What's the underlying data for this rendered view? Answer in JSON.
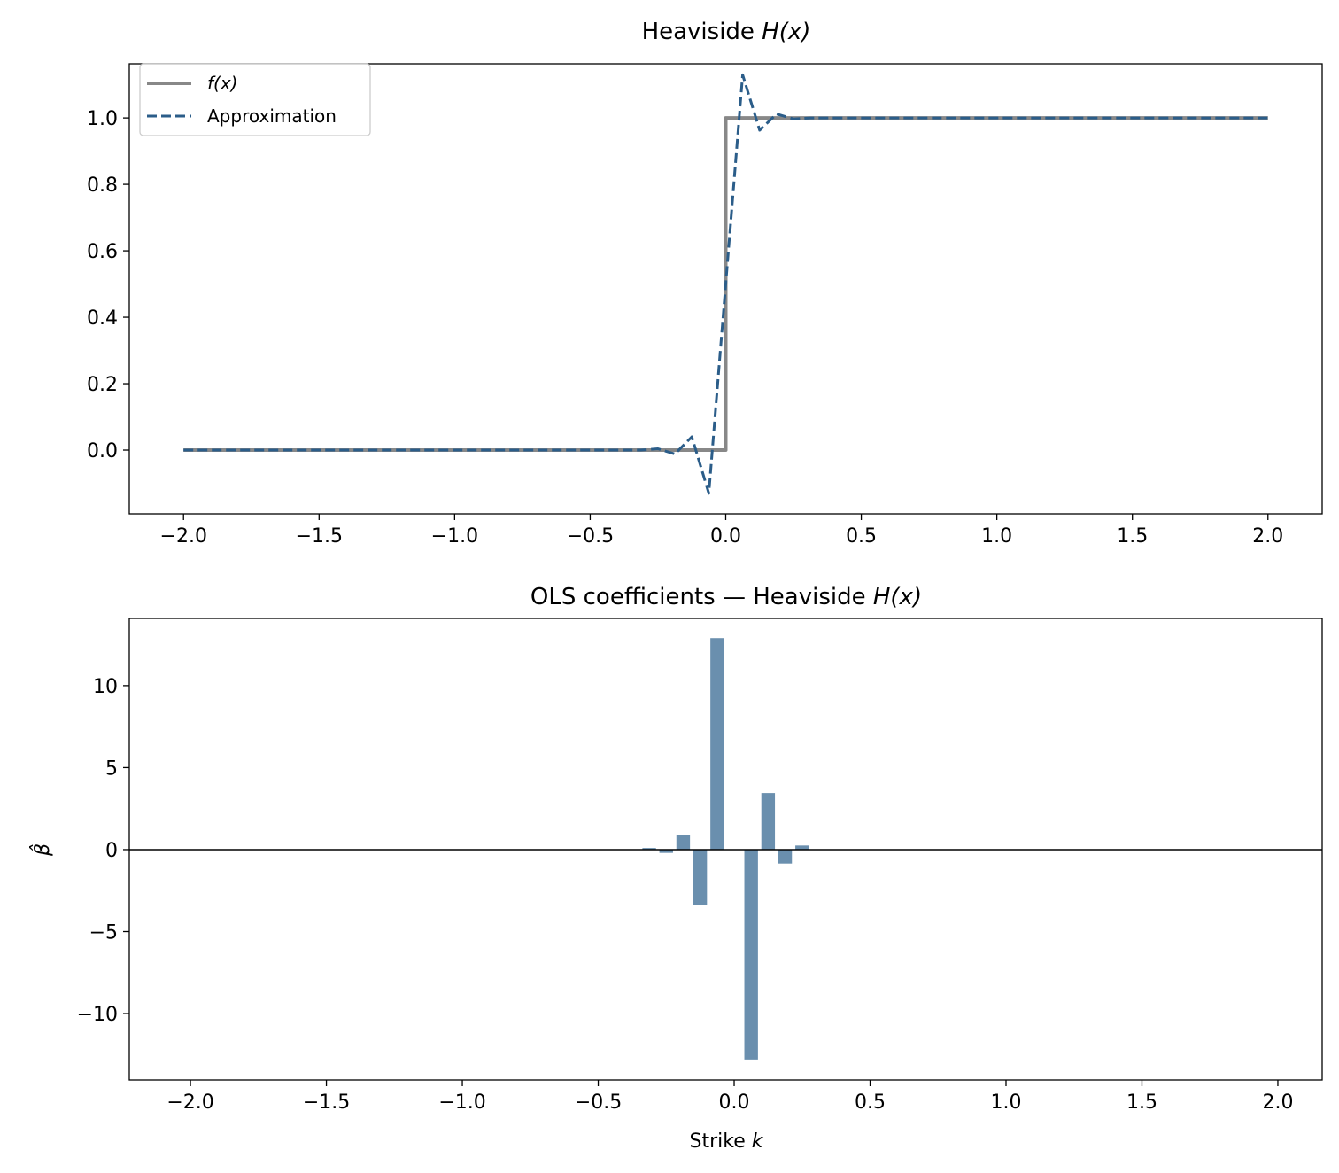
{
  "chart_data": [
    {
      "type": "line",
      "title": "Heaviside",
      "title_math": "H(x)",
      "xlabel": "",
      "ylabel": "",
      "xlim": [
        -2.2,
        2.2
      ],
      "ylim": [
        -0.192,
        1.163
      ],
      "xticks": [
        -2.0,
        -1.5,
        -1.0,
        -0.5,
        0.0,
        0.5,
        1.0,
        1.5,
        2.0
      ],
      "xtick_labels": [
        "−2.0",
        "−1.5",
        "−1.0",
        "−0.5",
        "0.0",
        "0.5",
        "1.0",
        "1.5",
        "2.0"
      ],
      "yticks": [
        0.0,
        0.2,
        0.4,
        0.6,
        0.8,
        1.0
      ],
      "ytick_labels": [
        "0.0",
        "0.2",
        "0.4",
        "0.6",
        "0.8",
        "1.0"
      ],
      "grid": false,
      "legend_placement": "top-left",
      "series": [
        {
          "name": "f(x)",
          "color": "#888888",
          "style": "solid",
          "x": [
            -2.0,
            0.0,
            0.0,
            2.0
          ],
          "y": [
            0.0,
            0.0,
            1.0,
            1.0
          ]
        },
        {
          "name": "Approximation",
          "color": "#2b5d89",
          "style": "dashed",
          "x": [
            -2.0,
            -0.3125,
            -0.25,
            -0.1875,
            -0.125,
            -0.0625,
            0.0625,
            0.125,
            0.1875,
            0.25,
            0.3125,
            2.0
          ],
          "y": [
            0.0,
            0.0,
            0.004,
            -0.012,
            0.04,
            -0.13,
            1.13,
            0.963,
            1.012,
            0.997,
            1.0,
            1.0
          ]
        }
      ]
    },
    {
      "type": "bar",
      "title": "OLS coefficients — Heaviside",
      "title_math": "H(x)",
      "xlabel": "Strike",
      "xlabel_math": "k",
      "ylabel": "β̂",
      "xlim": [
        -2.225,
        2.163
      ],
      "ylim": [
        -14.05,
        14.1
      ],
      "xticks": [
        -2.0,
        -1.5,
        -1.0,
        -0.5,
        0.0,
        0.5,
        1.0,
        1.5,
        2.0
      ],
      "xtick_labels": [
        "−2.0",
        "−1.5",
        "−1.0",
        "−0.5",
        "0.0",
        "0.5",
        "1.0",
        "1.5",
        "2.0"
      ],
      "yticks": [
        -10,
        -5,
        0,
        5,
        10
      ],
      "ytick_labels": [
        "−10",
        "−5",
        "0",
        "5",
        "10"
      ],
      "grid": false,
      "bar_color": "#6a8fae",
      "bar_width": 0.05,
      "x": [
        -0.3125,
        -0.25,
        -0.1875,
        -0.125,
        -0.0625,
        0.0,
        0.0625,
        0.125,
        0.1875,
        0.25
      ],
      "values": [
        0.1,
        -0.2,
        0.9,
        -3.4,
        12.9,
        0.0,
        -12.8,
        3.45,
        -0.85,
        0.25
      ],
      "zero_line": true
    }
  ]
}
